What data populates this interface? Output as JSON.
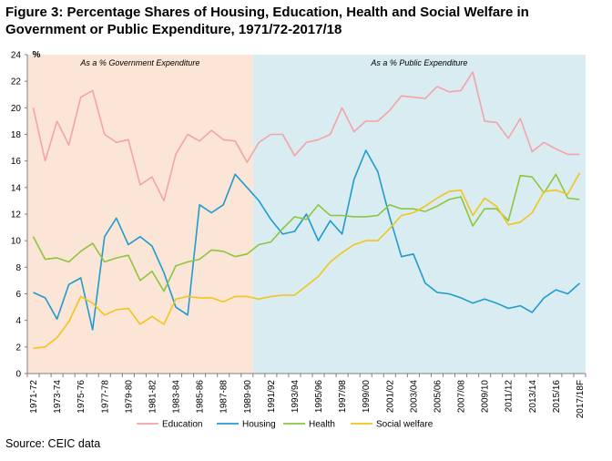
{
  "title": "Figure 3: Percentage Shares of Housing, Education, Health and Social Welfare in Government or Public Expenditure, 1971/72-2017/18",
  "source": "Source: CEIC data",
  "chart_data": {
    "type": "line",
    "ylabel": "%",
    "ylim": [
      0,
      24
    ],
    "yticks": [
      0,
      2,
      4,
      6,
      8,
      10,
      12,
      14,
      16,
      18,
      20,
      22,
      24
    ],
    "grid": false,
    "legend_position": "bottom",
    "x": [
      "1971-72",
      "1972-73",
      "1973-74",
      "1974-75",
      "1975-76",
      "1976-77",
      "1977-78",
      "1978-79",
      "1979-80",
      "1980-81",
      "1981-82",
      "1982-83",
      "1983-84",
      "1984-85",
      "1985-86",
      "1986-87",
      "1987-88",
      "1988-89",
      "1989-90",
      "1990/91",
      "1991/92",
      "1992/93",
      "1993/94",
      "1994/95",
      "1995/96",
      "1996/97",
      "1997/98",
      "1998/99",
      "1999/00",
      "2000/01",
      "2001/02",
      "2002/03",
      "2003/04",
      "2004/05",
      "2005/06",
      "2006/07",
      "2007/08",
      "2008/09",
      "2009/10",
      "2010/11",
      "2011/12",
      "2012/13",
      "2013/14",
      "2014/15",
      "2015/16",
      "2016/17",
      "2017/18F"
    ],
    "x_tick_labels": [
      "1971-72",
      "1973-74",
      "1975-76",
      "1977-78",
      "1979-80",
      "1981-82",
      "1983-84",
      "1985-86",
      "1987-88",
      "1989-90",
      "1991/92",
      "1993/94",
      "1995/96",
      "1997/98",
      "1999/00",
      "2001/02",
      "2003/04",
      "2005/06",
      "2007/08",
      "2009/10",
      "2011/12",
      "2013/14",
      "2015/16",
      "2017/18F"
    ],
    "regions": [
      {
        "label": "As a  %  Government Expenditure",
        "from": "1971-72",
        "to": "1989-90",
        "color": "#fbe5d6"
      },
      {
        "label": "As a  %  Public Expenditure",
        "from": "1990/91",
        "to": "2017/18F",
        "color": "#d9ecf2"
      }
    ],
    "series": [
      {
        "name": "Education",
        "color": "#f4a3a8",
        "values": [
          20.0,
          16.0,
          19.0,
          17.2,
          20.8,
          21.3,
          18.0,
          17.4,
          17.6,
          14.2,
          14.8,
          13.0,
          16.5,
          18.0,
          17.5,
          18.3,
          17.6,
          17.5,
          15.9,
          17.4,
          18.0,
          18.0,
          16.4,
          17.4,
          17.6,
          18.0,
          20.0,
          18.2,
          19.0,
          19.0,
          19.8,
          20.9,
          20.8,
          20.7,
          21.6,
          21.2,
          21.3,
          22.7,
          19.0,
          18.9,
          17.7,
          19.2,
          16.7,
          17.4,
          16.9,
          16.5,
          16.5
        ]
      },
      {
        "name": "Housing",
        "color": "#1f9bcf",
        "values": [
          6.1,
          5.7,
          4.1,
          6.7,
          7.2,
          3.3,
          10.3,
          11.7,
          9.7,
          10.3,
          9.6,
          7.6,
          5.0,
          4.4,
          12.7,
          12.1,
          12.7,
          15.0,
          14.0,
          13.0,
          11.6,
          10.5,
          10.7,
          12.0,
          10.0,
          11.5,
          10.5,
          14.6,
          16.8,
          15.2,
          11.8,
          8.8,
          9.0,
          6.8,
          6.1,
          6.0,
          5.7,
          5.3,
          5.6,
          5.3,
          4.9,
          5.1,
          4.6,
          5.7,
          6.3,
          6.0,
          6.8
        ]
      },
      {
        "name": "Health",
        "color": "#8cc63e",
        "values": [
          10.3,
          8.6,
          8.7,
          8.4,
          9.2,
          9.8,
          8.4,
          8.7,
          8.9,
          7.0,
          7.7,
          6.2,
          8.1,
          8.4,
          8.6,
          9.3,
          9.2,
          8.8,
          9.0,
          9.7,
          9.9,
          10.9,
          11.8,
          11.6,
          12.7,
          11.9,
          11.9,
          11.8,
          11.8,
          11.9,
          12.7,
          12.4,
          12.4,
          12.2,
          12.6,
          13.1,
          13.3,
          11.1,
          12.4,
          12.4,
          11.5,
          14.9,
          14.8,
          13.6,
          15.0,
          13.2,
          13.1
        ]
      },
      {
        "name": "Social welfare",
        "color": "#f2c51c",
        "values": [
          1.9,
          2.0,
          2.7,
          3.9,
          5.8,
          5.3,
          4.4,
          4.8,
          4.9,
          3.7,
          4.3,
          3.7,
          5.6,
          5.8,
          5.7,
          5.7,
          5.4,
          5.8,
          5.8,
          5.6,
          5.8,
          5.9,
          5.9,
          6.6,
          7.3,
          8.4,
          9.1,
          9.7,
          10.0,
          10.0,
          10.9,
          11.9,
          12.1,
          12.6,
          13.2,
          13.7,
          13.8,
          11.9,
          13.2,
          12.6,
          11.2,
          11.4,
          12.1,
          13.7,
          13.8,
          13.5,
          15.1
        ]
      }
    ]
  }
}
